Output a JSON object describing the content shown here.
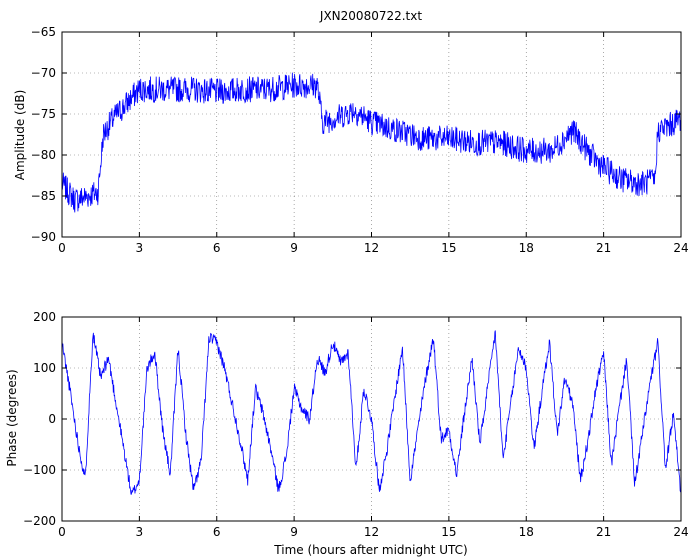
{
  "chart_data": [
    {
      "type": "line",
      "title": "JXN20080722.txt",
      "xlabel": "",
      "ylabel": "Amplitude (dB)",
      "xlim": [
        0,
        24
      ],
      "ylim": [
        -90,
        -65
      ],
      "xticks": [
        0,
        3,
        6,
        9,
        12,
        15,
        18,
        21,
        24
      ],
      "yticks": [
        -90,
        -85,
        -80,
        -75,
        -70,
        -65
      ],
      "grid": true,
      "line_color": "#0000ff",
      "series": [
        {
          "x": [
            0,
            0.5,
            1.0,
            1.4,
            1.6,
            2.0,
            3.0,
            4.0,
            5.0,
            6.0,
            7.0,
            8.0,
            9.0,
            9.9,
            10.1,
            11.0,
            11.3,
            12.0,
            13.0,
            14.0,
            15.0,
            16.0,
            17.0,
            18.0,
            19.0,
            19.8,
            20.5,
            21.0,
            21.7,
            22.5,
            23.0,
            23.1,
            23.5,
            24.0
          ],
          "y": [
            -83.5,
            -85.5,
            -85.0,
            -84.5,
            -77.5,
            -75.5,
            -72.0,
            -72.0,
            -72.0,
            -72.3,
            -72.0,
            -72.0,
            -71.5,
            -71.5,
            -76.0,
            -75.0,
            -74.5,
            -76.0,
            -77.0,
            -78.0,
            -78.0,
            -78.5,
            -78.5,
            -79.5,
            -79.5,
            -77.0,
            -80.0,
            -81.5,
            -83.0,
            -83.5,
            -83.0,
            -77.0,
            -76.5,
            -75.5
          ]
        }
      ]
    },
    {
      "type": "line",
      "title": "",
      "xlabel": "Time (hours after midnight UTC)",
      "ylabel": "Phase (degrees)",
      "xlim": [
        0,
        24
      ],
      "ylim": [
        -200,
        200
      ],
      "xticks": [
        0,
        3,
        6,
        9,
        12,
        15,
        18,
        21,
        24
      ],
      "yticks": [
        -200,
        -100,
        0,
        100,
        200
      ],
      "grid": true,
      "line_color": "#0000ff",
      "series": [
        {
          "wrap": [
            -180,
            180
          ],
          "x": [
            0,
            0.3,
            0.6,
            0.9,
            1.2,
            1.5,
            1.8,
            2.1,
            2.4,
            2.7,
            3.0,
            3.3,
            3.6,
            3.9,
            4.2,
            4.5,
            4.8,
            5.1,
            5.4,
            5.7,
            6.0,
            6.3,
            6.6,
            6.9,
            7.2,
            7.5,
            7.8,
            8.1,
            8.4,
            8.7,
            9.0,
            9.3,
            9.6,
            9.9,
            10.2,
            10.5,
            10.8,
            11.1,
            11.4,
            11.7,
            12.0,
            12.3,
            12.6,
            12.9,
            13.2,
            13.5,
            13.8,
            14.1,
            14.4,
            14.7,
            15.0,
            15.3,
            15.6,
            15.9,
            16.2,
            16.5,
            16.8,
            17.1,
            17.4,
            17.7,
            18.0,
            18.3,
            18.6,
            18.9,
            19.2,
            19.5,
            19.8,
            20.1,
            20.4,
            20.7,
            21.0,
            21.3,
            21.6,
            21.9,
            22.2,
            22.5,
            22.8,
            23.1,
            23.4,
            23.7,
            24.0
          ],
          "y": [
            150,
            60,
            -40,
            -120,
            170,
            80,
            120,
            30,
            -60,
            -150,
            -120,
            100,
            130,
            -20,
            -110,
            140,
            -30,
            -140,
            -80,
            160,
            150,
            100,
            30,
            -40,
            -120,
            60,
            10,
            -60,
            -140,
            -70,
            60,
            20,
            0,
            120,
            90,
            150,
            110,
            130,
            -100,
            60,
            0,
            -140,
            -60,
            40,
            140,
            -120,
            -20,
            80,
            160,
            -40,
            -20,
            -110,
            10,
            120,
            -50,
            60,
            170,
            -80,
            30,
            140,
            100,
            -60,
            50,
            150,
            -30,
            80,
            30,
            -120,
            -40,
            60,
            130,
            -90,
            20,
            120,
            -130,
            -30,
            70,
            150,
            -100,
            10,
            -150
          ]
        }
      ]
    }
  ]
}
